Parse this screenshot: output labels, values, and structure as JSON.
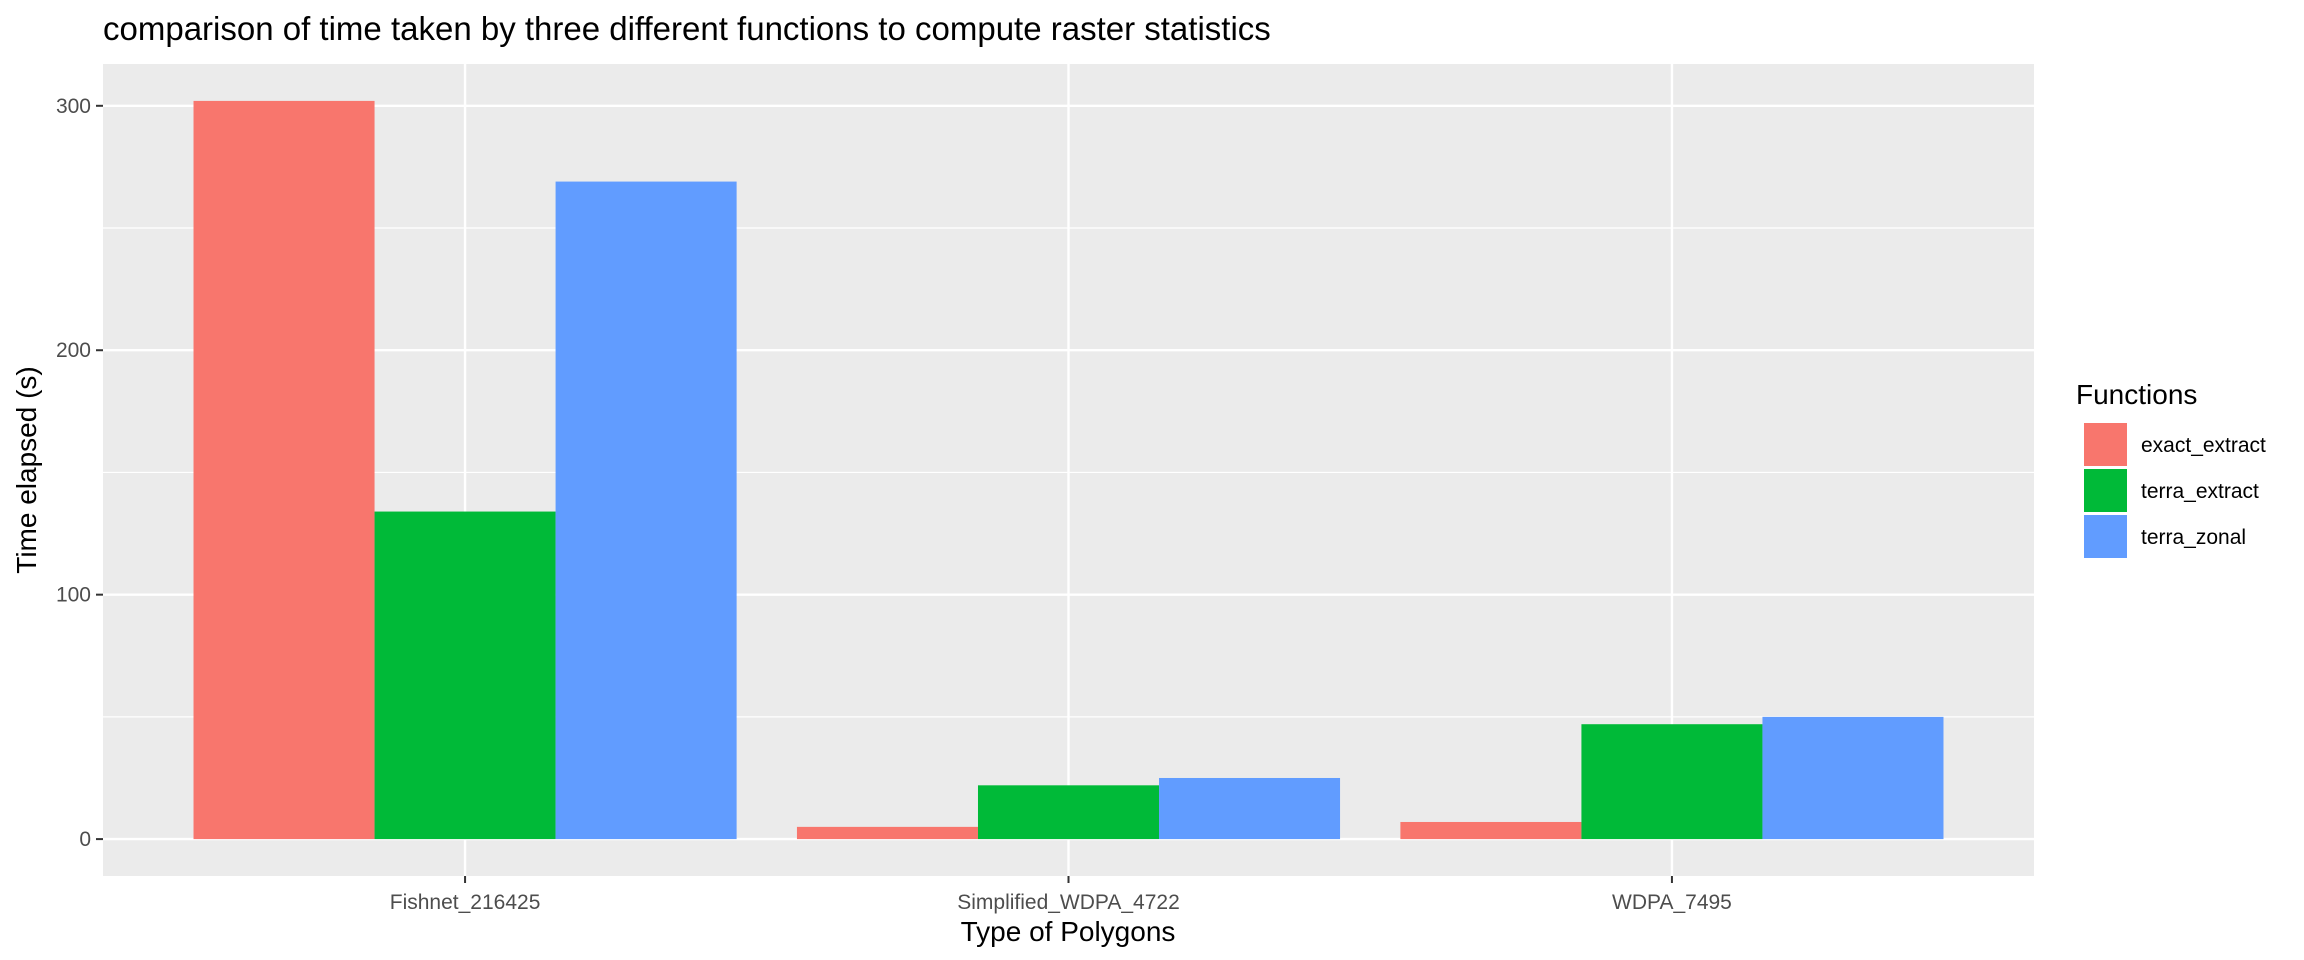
{
  "chart_data": {
    "type": "bar",
    "title": "comparison of time taken by three different functions to compute raster statistics",
    "xlabel": "Type of Polygons",
    "ylabel": "Time elapsed (s)",
    "categories": [
      "Fishnet_216425",
      "Simplified_WDPA_4722",
      "WDPA_7495"
    ],
    "series": [
      {
        "name": "exact_extract",
        "color": "#F8766D",
        "values": [
          302,
          5,
          7
        ]
      },
      {
        "name": "terra_extract",
        "color": "#00BA38",
        "values": [
          134,
          22,
          47
        ]
      },
      {
        "name": "terra_zonal",
        "color": "#619CFF",
        "values": [
          269,
          25,
          50
        ]
      }
    ],
    "yticks": [
      0,
      100,
      200,
      300
    ],
    "ylim": [
      -15.1,
      317.1
    ],
    "legend": {
      "title": "Functions",
      "position": "right"
    },
    "grid": true,
    "background": "#EBEBEB"
  }
}
